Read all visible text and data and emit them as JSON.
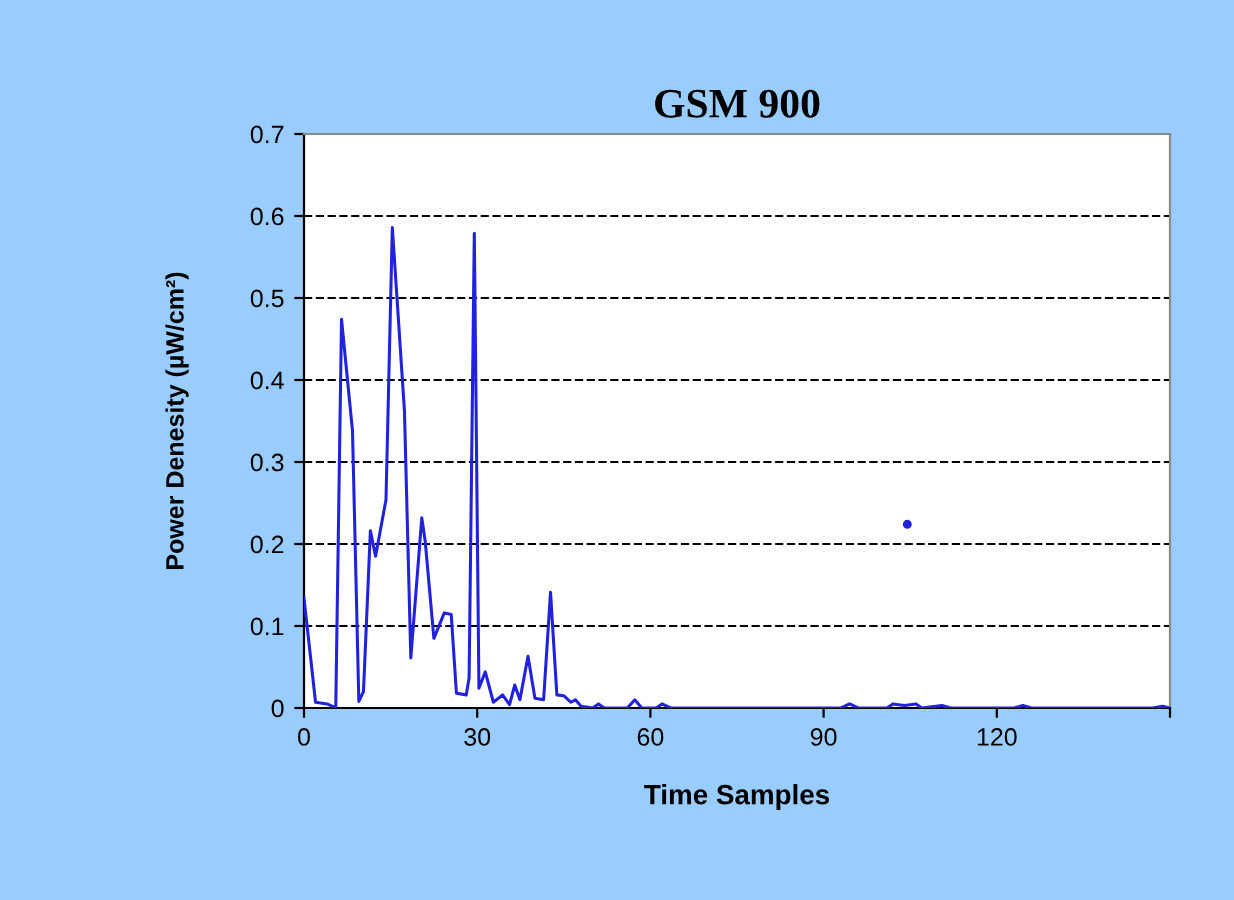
{
  "chart_data": {
    "type": "line",
    "title": "GSM 900",
    "xlabel": "Time Samples",
    "ylabel": "Power Denesity (µW/cm²)",
    "xlim": [
      0,
      150
    ],
    "xticks": [
      0,
      30,
      60,
      90,
      120,
      {
        "value": 150,
        "label": null
      }
    ],
    "ylim": [
      0,
      0.7
    ],
    "yticks": [
      0,
      0.1,
      0.2,
      0.3,
      0.4,
      0.5,
      0.6,
      0.7
    ],
    "grid": "y",
    "marker": "none",
    "line_style": "solid",
    "series": [
      {
        "color": "#2222dd",
        "x": [
          0,
          2,
          4,
          5.5,
          6.5,
          8.4,
          9.5,
          10.3,
          11.5,
          12.4,
          14.2,
          15.3,
          17.4,
          18.5,
          20.4,
          21,
          22.5,
          24.3,
          25.5,
          26.4,
          28.1,
          28.6,
          29.5,
          30.3,
          31.4,
          32.8,
          34.4,
          35.6,
          36.5,
          37.4,
          38.8,
          40,
          41.5,
          42.7,
          43.8,
          45,
          46.2,
          47,
          48,
          50,
          51,
          52,
          56,
          57.3,
          58.5,
          61,
          62,
          63.5,
          93,
          94.5,
          96,
          101,
          102,
          104,
          106,
          107,
          110.5,
          112,
          123,
          124.5,
          126,
          147,
          148.7,
          150
        ],
        "values": [
          0.134,
          0.007,
          0.005,
          0,
          0.474,
          0.338,
          0.008,
          0.02,
          0.216,
          0.185,
          0.254,
          0.586,
          0.362,
          0.061,
          0.232,
          0.203,
          0.085,
          0.116,
          0.114,
          0.018,
          0.016,
          0.037,
          0.579,
          0.024,
          0.044,
          0.007,
          0.016,
          0.004,
          0.028,
          0.01,
          0.063,
          0.012,
          0.01,
          0.141,
          0.016,
          0.015,
          0.007,
          0.01,
          0.002,
          0,
          0.005,
          0,
          0,
          0.01,
          0,
          0,
          0.005,
          0,
          0,
          0.005,
          0,
          0,
          0.005,
          0.003,
          0.005,
          0,
          0.003,
          0,
          0,
          0.003,
          0,
          0,
          0.002,
          0
        ]
      },
      {
        "type": "scatter",
        "marker": "circle",
        "color": "#2222dd",
        "x": [
          104.5
        ],
        "values": [
          0.224
        ]
      }
    ]
  }
}
